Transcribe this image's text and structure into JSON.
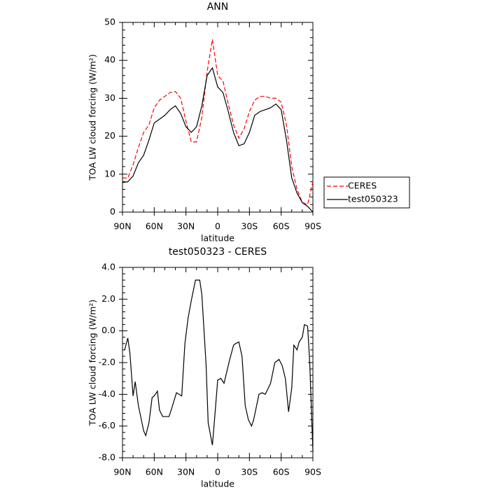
{
  "chart_data": [
    {
      "type": "line",
      "title": "ANN",
      "xlabel": "latitude",
      "ylabel": "TOA LW cloud forcing (W/m²)",
      "xlim": [
        90,
        -90
      ],
      "xticks": [
        {
          "value": 90,
          "label": "90N"
        },
        {
          "value": 60,
          "label": "60N"
        },
        {
          "value": 30,
          "label": "30N"
        },
        0,
        {
          "value": -30,
          "label": "30S"
        },
        {
          "value": -60,
          "label": "60S"
        },
        {
          "value": -90,
          "label": "90S"
        }
      ],
      "ylim": [
        0,
        50
      ],
      "yticks": [
        0,
        10,
        20,
        30,
        40,
        50
      ],
      "legend": "right",
      "x": [
        90,
        85,
        80,
        75,
        70,
        65,
        60,
        55,
        50,
        45,
        40,
        35,
        30,
        25,
        20,
        15,
        10,
        5,
        0,
        -5,
        -10,
        -15,
        -20,
        -25,
        -30,
        -35,
        -40,
        -45,
        -50,
        -55,
        -60,
        -65,
        -70,
        -75,
        -80,
        -85,
        -90
      ],
      "series": [
        {
          "name": "CERES",
          "color": "#ff0000",
          "linestyle": "dashed",
          "values": [
            9,
            9,
            12.5,
            17,
            21,
            23,
            27.5,
            29.5,
            30.5,
            31.5,
            31.8,
            30,
            24,
            18.5,
            18.5,
            25,
            37,
            45.5,
            36,
            34.5,
            28.5,
            23,
            19.5,
            22,
            26.5,
            29.5,
            30.5,
            30.5,
            30,
            30,
            29,
            23,
            12,
            6,
            2.5,
            2,
            8
          ]
        },
        {
          "name": "test050323",
          "color": "#000000",
          "linestyle": "solid",
          "values": [
            7.8,
            8,
            9.5,
            13,
            15,
            19,
            23.5,
            24.5,
            25.5,
            27,
            28,
            26,
            22.5,
            21,
            22.5,
            28,
            36,
            38,
            33,
            31.5,
            26.5,
            21,
            17.5,
            18,
            21,
            25.5,
            26.5,
            27,
            27.5,
            28.5,
            27,
            19,
            9,
            5,
            2.5,
            1.5,
            0
          ]
        }
      ]
    },
    {
      "type": "line",
      "title": "test050323 - CERES",
      "xlabel": "latitude",
      "ylabel": "TOA LW cloud forcing (W/m²)",
      "xlim": [
        90,
        -90
      ],
      "xticks": [
        {
          "value": 90,
          "label": "90N"
        },
        {
          "value": 60,
          "label": "60N"
        },
        {
          "value": 30,
          "label": "30N"
        },
        0,
        {
          "value": -30,
          "label": "30S"
        },
        {
          "value": -60,
          "label": "60S"
        },
        {
          "value": -90,
          "label": "90S"
        }
      ],
      "ylim": [
        -8,
        4
      ],
      "yticks": [
        {
          "value": -8,
          "label": "-8.0"
        },
        {
          "value": -6,
          "label": "-6.0"
        },
        {
          "value": -4,
          "label": "-4.0"
        },
        {
          "value": -2,
          "label": "-2.0"
        },
        {
          "value": 0,
          "label": "0.0"
        },
        {
          "value": 2,
          "label": "2.0"
        },
        {
          "value": 4,
          "label": "4.0"
        }
      ],
      "x": [
        88,
        85,
        83,
        80,
        78,
        75,
        70,
        68,
        65,
        62,
        60,
        57,
        55,
        52,
        46,
        44,
        39,
        34,
        31,
        28,
        25,
        21,
        17,
        15,
        11,
        9,
        5,
        3,
        0,
        -3,
        -6,
        -11,
        -15,
        -17,
        -20,
        -23,
        -26,
        -29,
        -32,
        -34,
        -39,
        -42,
        -45,
        -50,
        -54,
        -58,
        -61,
        -64,
        -67,
        -70,
        -72,
        -75,
        -77,
        -80,
        -82,
        -85,
        -87,
        -90
      ],
      "series": [
        {
          "color": "#000000",
          "linestyle": "solid",
          "values": [
            -1.2,
            -0.45,
            -1.4,
            -4.1,
            -3.2,
            -4.7,
            -6.3,
            -6.6,
            -5.8,
            -4.2,
            -4.1,
            -3.8,
            -5,
            -5.4,
            -5.4,
            -5,
            -3.9,
            -4.1,
            -0.8,
            0.8,
            1.9,
            3.2,
            3.2,
            2.3,
            -2.1,
            -5.8,
            -7.2,
            -5.6,
            -3.1,
            -3,
            -3.3,
            -1.9,
            -0.9,
            -0.8,
            -0.7,
            -1.6,
            -4.7,
            -5.6,
            -6,
            -5.6,
            -4,
            -3.9,
            -4,
            -3.3,
            -2,
            -1.8,
            -2.2,
            -3,
            -5.1,
            -3.6,
            -0.9,
            -1.2,
            -0.7,
            -0.4,
            0.4,
            0.3,
            -2,
            -7.6
          ]
        }
      ]
    }
  ]
}
